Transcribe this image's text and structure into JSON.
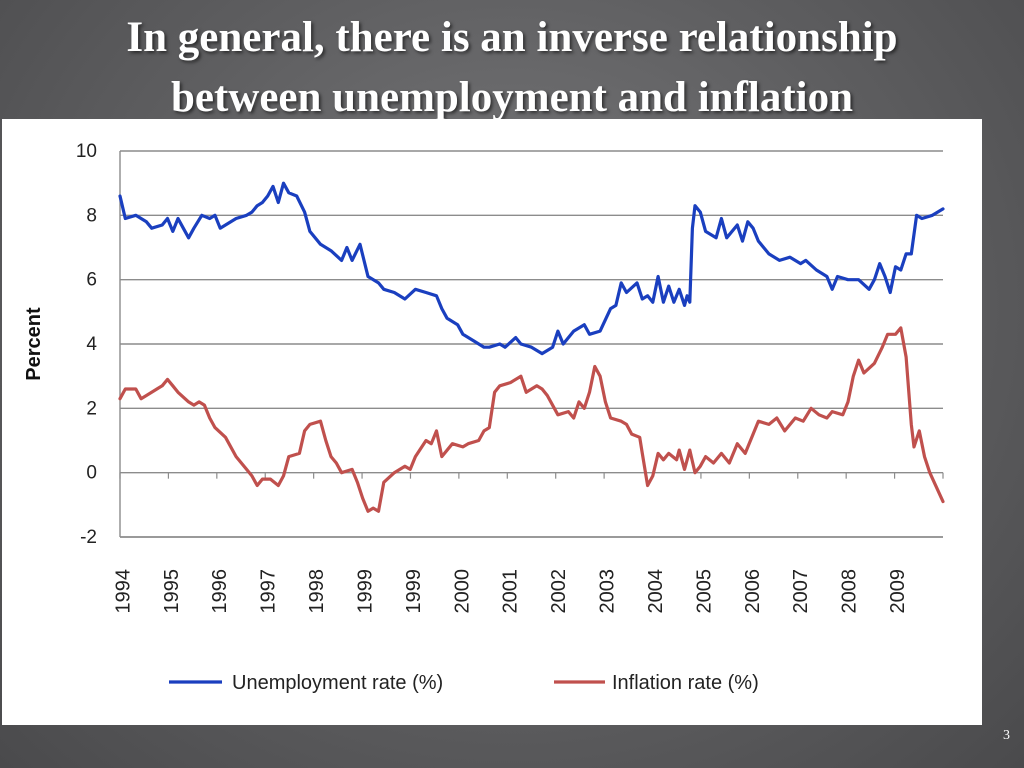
{
  "slide": {
    "title_line1": "In general, there is an inverse relationship",
    "title_line2": "between unemployment and inflation",
    "page_number": "3"
  },
  "chart_data": {
    "type": "line",
    "ylabel": "Percent",
    "xlabel": "",
    "ylim": [
      -2,
      10
    ],
    "yticks": [
      "10",
      "8",
      "6",
      "4",
      "2",
      "0",
      "-2"
    ],
    "xlim": [
      1994.0,
      2009.6
    ],
    "xtick_labels": [
      "1994",
      "1995",
      "1996",
      "1997",
      "1998",
      "1999",
      "1999",
      "2000",
      "2001",
      "2002",
      "2003",
      "2004",
      "2005",
      "2006",
      "2007",
      "2008",
      "2009"
    ],
    "grid": "horizontal",
    "legend_position": "bottom",
    "series": [
      {
        "name": "Unemployment rate (%)",
        "color": "#1a3fbf",
        "points": [
          [
            1994.0,
            8.6
          ],
          [
            1994.1,
            7.9
          ],
          [
            1994.3,
            8.0
          ],
          [
            1994.5,
            7.8
          ],
          [
            1994.6,
            7.6
          ],
          [
            1994.8,
            7.7
          ],
          [
            1994.9,
            7.9
          ],
          [
            1995.0,
            7.5
          ],
          [
            1995.1,
            7.9
          ],
          [
            1995.2,
            7.6
          ],
          [
            1995.3,
            7.3
          ],
          [
            1995.4,
            7.6
          ],
          [
            1995.55,
            8.0
          ],
          [
            1995.7,
            7.9
          ],
          [
            1995.8,
            8.0
          ],
          [
            1995.9,
            7.6
          ],
          [
            1996.0,
            7.7
          ],
          [
            1996.2,
            7.9
          ],
          [
            1996.4,
            8.0
          ],
          [
            1996.5,
            8.1
          ],
          [
            1996.6,
            8.3
          ],
          [
            1996.7,
            8.4
          ],
          [
            1996.8,
            8.6
          ],
          [
            1996.9,
            8.9
          ],
          [
            1997.0,
            8.4
          ],
          [
            1997.1,
            9.0
          ],
          [
            1997.2,
            8.7
          ],
          [
            1997.35,
            8.6
          ],
          [
            1997.5,
            8.1
          ],
          [
            1997.6,
            7.5
          ],
          [
            1997.8,
            7.1
          ],
          [
            1998.0,
            6.9
          ],
          [
            1998.2,
            6.6
          ],
          [
            1998.3,
            7.0
          ],
          [
            1998.4,
            6.6
          ],
          [
            1998.55,
            7.1
          ],
          [
            1998.7,
            6.1
          ],
          [
            1998.9,
            5.9
          ],
          [
            1999.0,
            5.7
          ],
          [
            1999.2,
            5.6
          ],
          [
            1999.4,
            5.4
          ],
          [
            1999.6,
            5.7
          ],
          [
            1999.8,
            5.6
          ],
          [
            2000.0,
            5.5
          ],
          [
            2000.1,
            5.1
          ],
          [
            2000.2,
            4.8
          ],
          [
            2000.4,
            4.6
          ],
          [
            2000.5,
            4.3
          ],
          [
            2000.7,
            4.1
          ],
          [
            2000.9,
            3.9
          ],
          [
            2001.0,
            3.9
          ],
          [
            2001.2,
            4.0
          ],
          [
            2001.3,
            3.9
          ],
          [
            2001.5,
            4.2
          ],
          [
            2001.6,
            4.0
          ],
          [
            2001.8,
            3.9
          ],
          [
            2002.0,
            3.7
          ],
          [
            2002.2,
            3.9
          ],
          [
            2002.3,
            4.4
          ],
          [
            2002.4,
            4.0
          ],
          [
            2002.6,
            4.4
          ],
          [
            2002.8,
            4.6
          ],
          [
            2002.9,
            4.3
          ],
          [
            2003.1,
            4.4
          ],
          [
            2003.3,
            5.1
          ],
          [
            2003.4,
            5.2
          ],
          [
            2003.5,
            5.9
          ],
          [
            2003.6,
            5.6
          ],
          [
            2003.8,
            5.9
          ],
          [
            2003.9,
            5.4
          ],
          [
            2004.0,
            5.5
          ],
          [
            2004.1,
            5.3
          ],
          [
            2004.2,
            6.1
          ],
          [
            2004.3,
            5.3
          ],
          [
            2004.4,
            5.8
          ],
          [
            2004.5,
            5.3
          ],
          [
            2004.6,
            5.7
          ],
          [
            2004.7,
            5.2
          ],
          [
            2004.75,
            5.5
          ],
          [
            2004.8,
            5.3
          ],
          [
            2004.85,
            7.6
          ],
          [
            2004.9,
            8.3
          ],
          [
            2005.0,
            8.1
          ],
          [
            2005.1,
            7.5
          ],
          [
            2005.3,
            7.3
          ],
          [
            2005.4,
            7.9
          ],
          [
            2005.5,
            7.3
          ],
          [
            2005.7,
            7.7
          ],
          [
            2005.8,
            7.2
          ],
          [
            2005.9,
            7.8
          ],
          [
            2006.0,
            7.6
          ],
          [
            2006.1,
            7.2
          ],
          [
            2006.3,
            6.8
          ],
          [
            2006.5,
            6.6
          ],
          [
            2006.7,
            6.7
          ],
          [
            2006.9,
            6.5
          ],
          [
            2007.0,
            6.6
          ],
          [
            2007.2,
            6.3
          ],
          [
            2007.4,
            6.1
          ],
          [
            2007.5,
            5.7
          ],
          [
            2007.6,
            6.1
          ],
          [
            2007.8,
            6.0
          ],
          [
            2008.0,
            6.0
          ],
          [
            2008.2,
            5.7
          ],
          [
            2008.3,
            6.0
          ],
          [
            2008.4,
            6.5
          ],
          [
            2008.5,
            6.1
          ],
          [
            2008.6,
            5.6
          ],
          [
            2008.7,
            6.4
          ],
          [
            2008.8,
            6.3
          ],
          [
            2008.9,
            6.8
          ],
          [
            2009.0,
            6.8
          ],
          [
            2009.1,
            8.0
          ],
          [
            2009.2,
            7.9
          ],
          [
            2009.4,
            8.0
          ],
          [
            2009.6,
            8.2
          ]
        ]
      },
      {
        "name": "Inflation rate (%)",
        "color": "#c0504d",
        "points": [
          [
            1994.0,
            2.3
          ],
          [
            1994.1,
            2.6
          ],
          [
            1994.3,
            2.6
          ],
          [
            1994.4,
            2.3
          ],
          [
            1994.5,
            2.4
          ],
          [
            1994.7,
            2.6
          ],
          [
            1994.8,
            2.7
          ],
          [
            1994.9,
            2.9
          ],
          [
            1995.0,
            2.7
          ],
          [
            1995.1,
            2.5
          ],
          [
            1995.3,
            2.2
          ],
          [
            1995.4,
            2.1
          ],
          [
            1995.5,
            2.2
          ],
          [
            1995.6,
            2.1
          ],
          [
            1995.7,
            1.7
          ],
          [
            1995.8,
            1.4
          ],
          [
            1996.0,
            1.1
          ],
          [
            1996.2,
            0.5
          ],
          [
            1996.4,
            0.1
          ],
          [
            1996.5,
            -0.1
          ],
          [
            1996.6,
            -0.4
          ],
          [
            1996.7,
            -0.2
          ],
          [
            1996.85,
            -0.2
          ],
          [
            1997.0,
            -0.4
          ],
          [
            1997.1,
            -0.1
          ],
          [
            1997.2,
            0.5
          ],
          [
            1997.4,
            0.6
          ],
          [
            1997.5,
            1.3
          ],
          [
            1997.6,
            1.5
          ],
          [
            1997.8,
            1.6
          ],
          [
            1997.9,
            1.0
          ],
          [
            1998.0,
            0.5
          ],
          [
            1998.1,
            0.3
          ],
          [
            1998.2,
            0.0
          ],
          [
            1998.4,
            0.1
          ],
          [
            1998.5,
            -0.3
          ],
          [
            1998.6,
            -0.8
          ],
          [
            1998.7,
            -1.2
          ],
          [
            1998.8,
            -1.1
          ],
          [
            1998.9,
            -1.2
          ],
          [
            1999.0,
            -0.3
          ],
          [
            1999.2,
            0.0
          ],
          [
            1999.4,
            0.2
          ],
          [
            1999.5,
            0.1
          ],
          [
            1999.6,
            0.5
          ],
          [
            1999.8,
            1.0
          ],
          [
            1999.9,
            0.9
          ],
          [
            2000.0,
            1.3
          ],
          [
            2000.1,
            0.5
          ],
          [
            2000.3,
            0.9
          ],
          [
            2000.5,
            0.8
          ],
          [
            2000.6,
            0.9
          ],
          [
            2000.8,
            1.0
          ],
          [
            2000.9,
            1.3
          ],
          [
            2001.0,
            1.4
          ],
          [
            2001.1,
            2.5
          ],
          [
            2001.2,
            2.7
          ],
          [
            2001.4,
            2.8
          ],
          [
            2001.6,
            3.0
          ],
          [
            2001.7,
            2.5
          ],
          [
            2001.9,
            2.7
          ],
          [
            2002.0,
            2.6
          ],
          [
            2002.1,
            2.4
          ],
          [
            2002.3,
            1.8
          ],
          [
            2002.5,
            1.9
          ],
          [
            2002.6,
            1.7
          ],
          [
            2002.7,
            2.2
          ],
          [
            2002.8,
            2.0
          ],
          [
            2002.9,
            2.5
          ],
          [
            2003.0,
            3.3
          ],
          [
            2003.1,
            3.0
          ],
          [
            2003.2,
            2.2
          ],
          [
            2003.3,
            1.7
          ],
          [
            2003.5,
            1.6
          ],
          [
            2003.6,
            1.5
          ],
          [
            2003.7,
            1.2
          ],
          [
            2003.85,
            1.1
          ],
          [
            2003.9,
            0.6
          ],
          [
            2004.0,
            -0.4
          ],
          [
            2004.1,
            -0.1
          ],
          [
            2004.2,
            0.6
          ],
          [
            2004.3,
            0.4
          ],
          [
            2004.4,
            0.6
          ],
          [
            2004.55,
            0.4
          ],
          [
            2004.6,
            0.7
          ],
          [
            2004.7,
            0.1
          ],
          [
            2004.8,
            0.7
          ],
          [
            2004.9,
            0.0
          ],
          [
            2005.0,
            0.2
          ],
          [
            2005.1,
            0.5
          ],
          [
            2005.25,
            0.3
          ],
          [
            2005.4,
            0.6
          ],
          [
            2005.55,
            0.3
          ],
          [
            2005.7,
            0.9
          ],
          [
            2005.85,
            0.6
          ],
          [
            2006.0,
            1.2
          ],
          [
            2006.1,
            1.6
          ],
          [
            2006.3,
            1.5
          ],
          [
            2006.45,
            1.7
          ],
          [
            2006.6,
            1.3
          ],
          [
            2006.8,
            1.7
          ],
          [
            2006.95,
            1.6
          ],
          [
            2007.1,
            2.0
          ],
          [
            2007.25,
            1.8
          ],
          [
            2007.4,
            1.7
          ],
          [
            2007.5,
            1.9
          ],
          [
            2007.7,
            1.8
          ],
          [
            2007.8,
            2.2
          ],
          [
            2007.9,
            3.0
          ],
          [
            2008.0,
            3.5
          ],
          [
            2008.1,
            3.1
          ],
          [
            2008.3,
            3.4
          ],
          [
            2008.45,
            3.9
          ],
          [
            2008.55,
            4.3
          ],
          [
            2008.7,
            4.3
          ],
          [
            2008.8,
            4.5
          ],
          [
            2008.9,
            3.6
          ],
          [
            2009.0,
            1.5
          ],
          [
            2009.05,
            0.8
          ],
          [
            2009.15,
            1.3
          ],
          [
            2009.25,
            0.5
          ],
          [
            2009.35,
            0.0
          ],
          [
            2009.6,
            -0.9
          ]
        ]
      }
    ]
  }
}
